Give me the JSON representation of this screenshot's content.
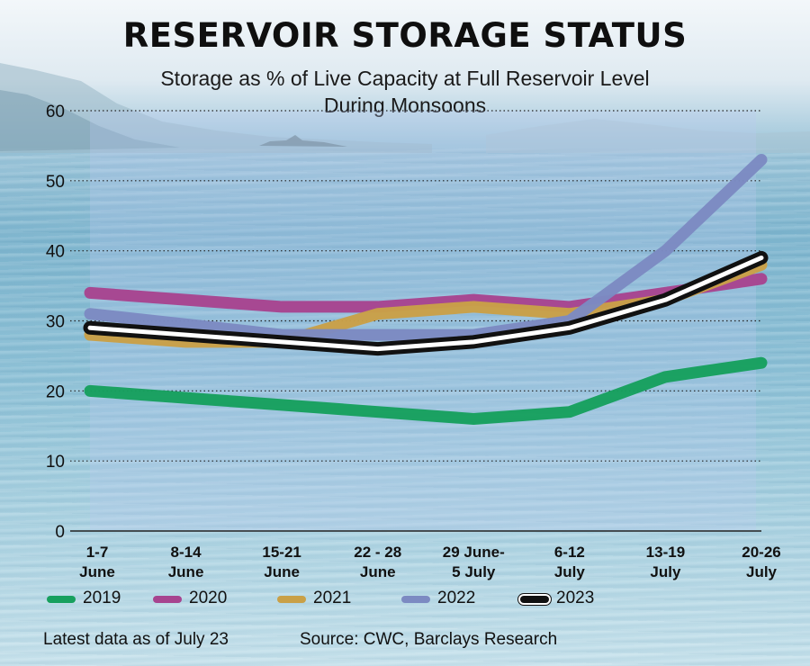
{
  "chart_data": {
    "type": "line",
    "title": "RESERVOIR STORAGE STATUS",
    "subtitle": "Storage as % of Live Capacity at Full Reservoir Level During Monsoons",
    "categories": [
      [
        "1-7",
        "June"
      ],
      [
        "8-14",
        "June"
      ],
      [
        "15-21",
        "June"
      ],
      [
        "22 - 28",
        "June"
      ],
      [
        "29 June-",
        "5 July"
      ],
      [
        "6-12",
        "July"
      ],
      [
        "13-19",
        "July"
      ],
      [
        "20-26",
        "July"
      ]
    ],
    "ylim": [
      0,
      60
    ],
    "yticks": [
      0,
      10,
      20,
      30,
      40,
      50,
      60
    ],
    "grid": "horizontal dotted",
    "series": [
      {
        "name": "2019",
        "color": "#17a05e",
        "values": [
          20,
          19,
          18,
          17,
          16,
          17,
          22,
          24
        ]
      },
      {
        "name": "2020",
        "color": "#a7448f",
        "values": [
          34,
          33,
          32,
          32,
          33,
          32,
          34,
          36
        ]
      },
      {
        "name": "2021",
        "color": "#c9a047",
        "values": [
          28,
          27,
          27,
          31,
          32,
          31,
          33,
          38
        ]
      },
      {
        "name": "2022",
        "color": "#7c8ac2",
        "values": [
          31,
          29.5,
          28,
          28,
          28,
          30,
          40,
          53
        ]
      },
      {
        "name": "2023",
        "color": "#111111",
        "values": [
          29,
          28,
          27,
          26,
          27,
          29,
          33,
          39
        ]
      }
    ],
    "legend_position": "bottom"
  },
  "footer": {
    "note": "Latest data as of July 23",
    "source": "Source: CWC, Barclays Research"
  }
}
